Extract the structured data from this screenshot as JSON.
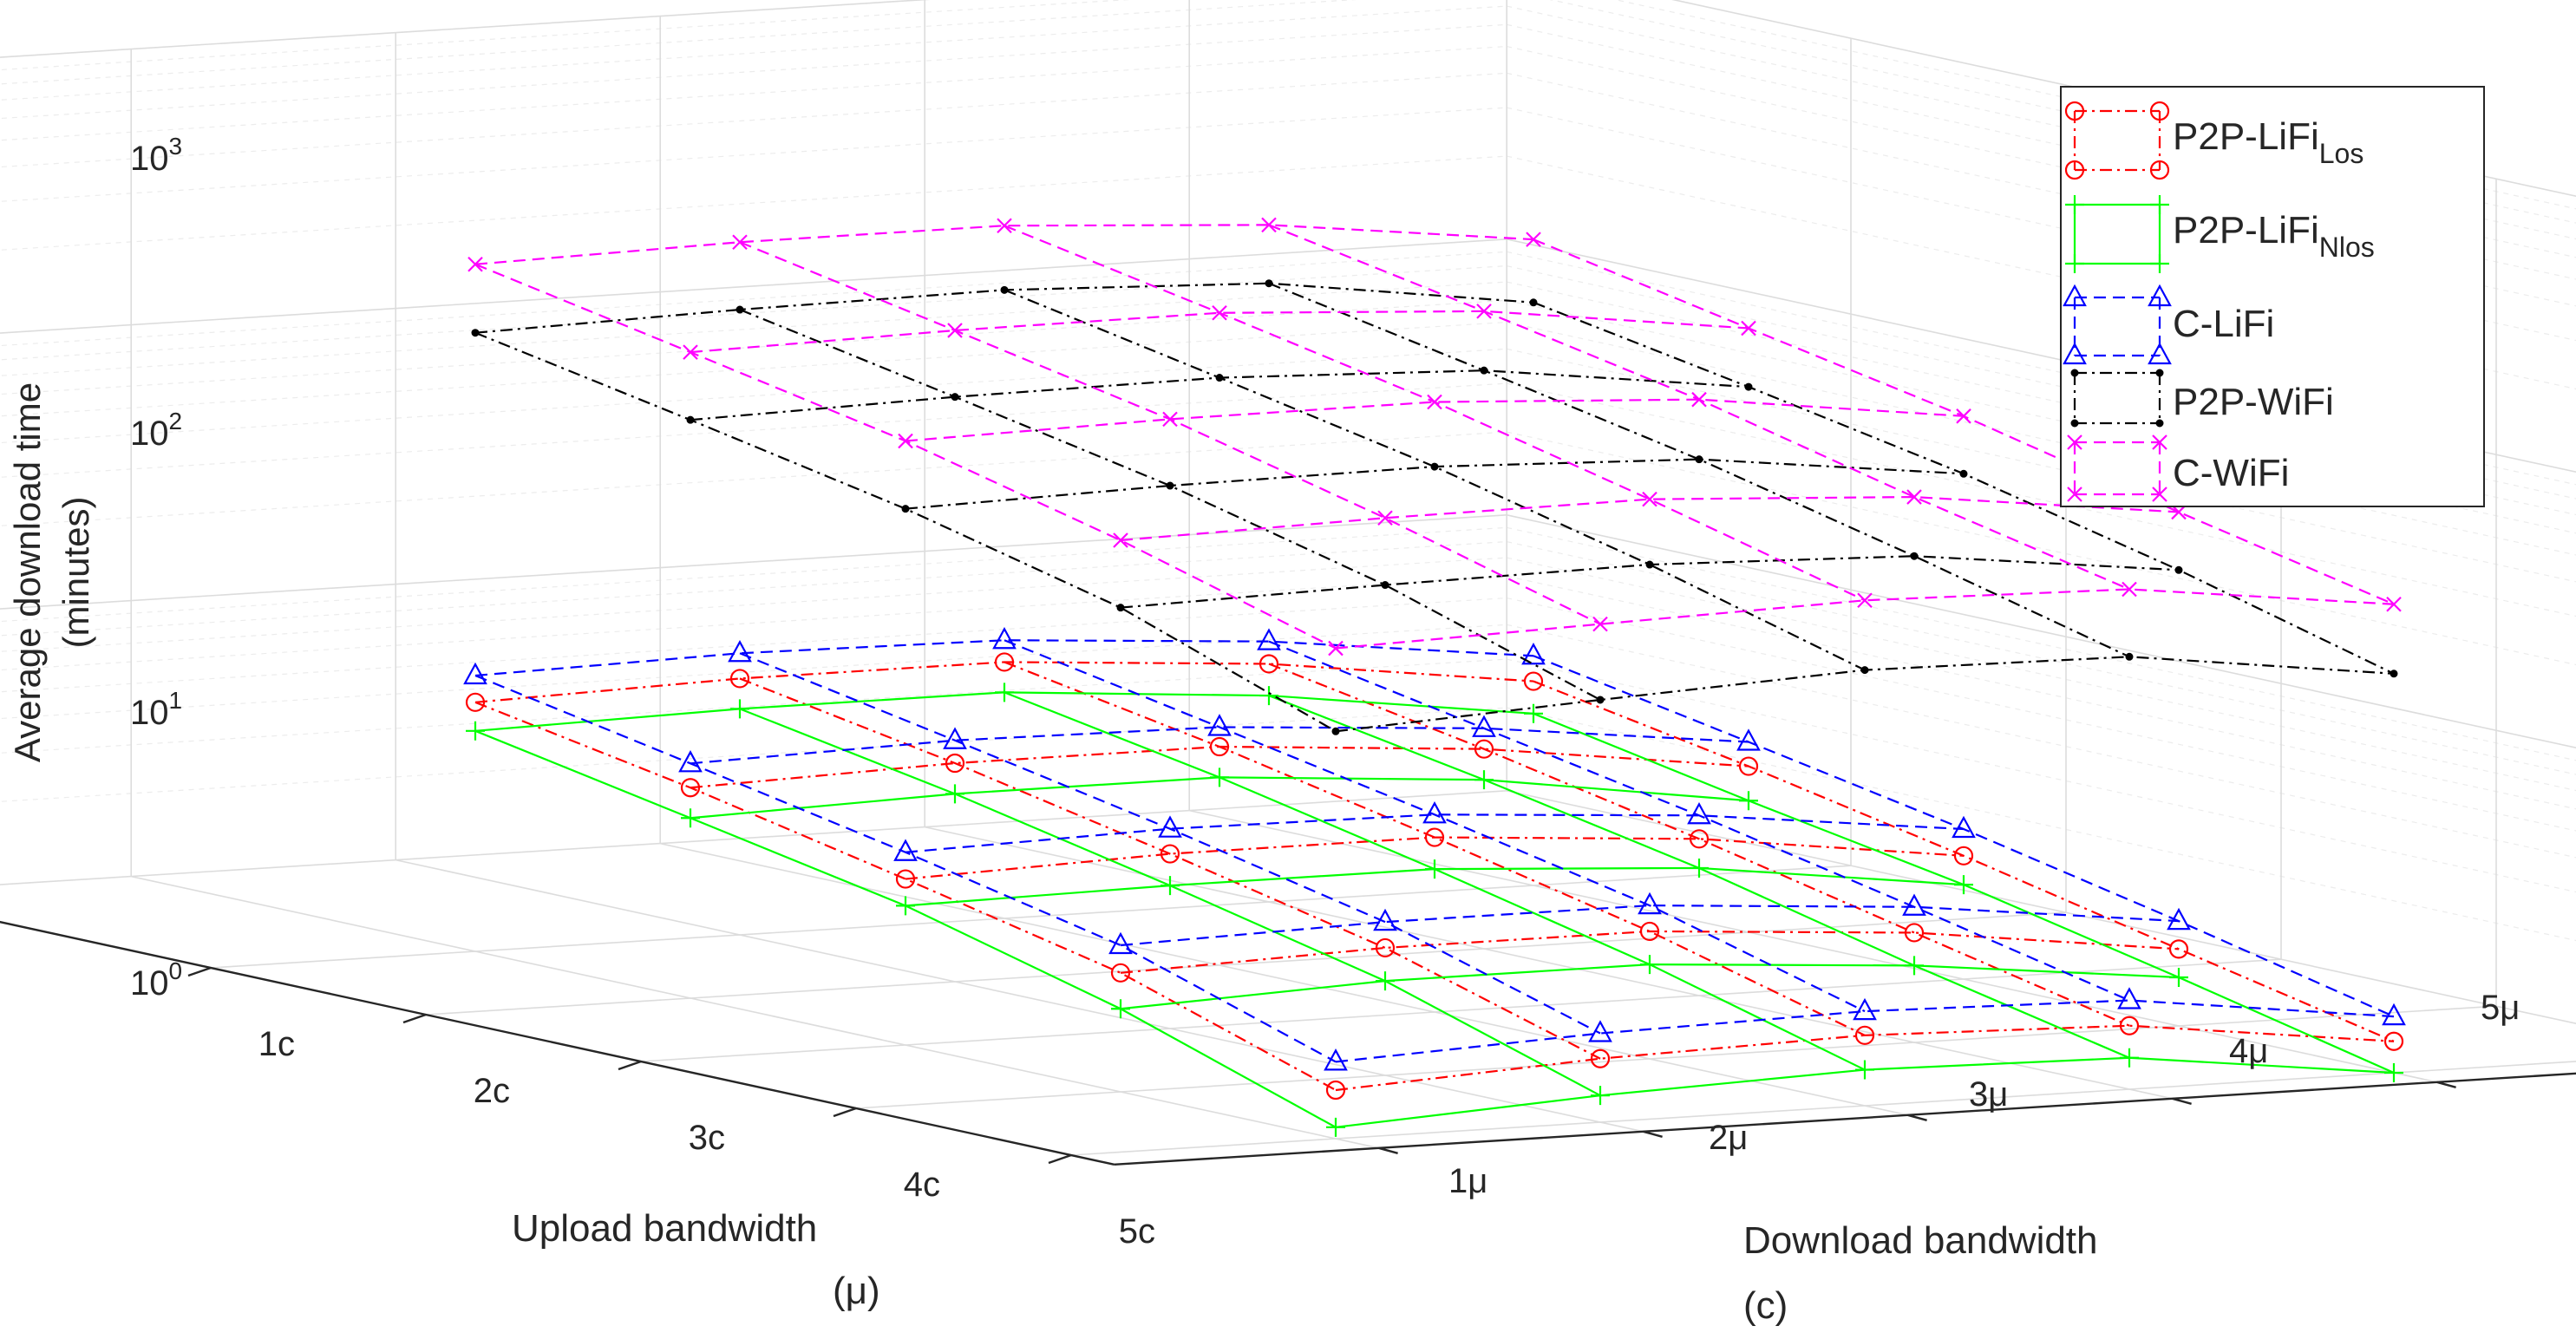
{
  "chart_data": {
    "type": "3d-line-mesh",
    "zscale": "log",
    "zlim": [
      1,
      1000
    ],
    "ztick_labels": [
      "10",
      "10",
      "10",
      "10"
    ],
    "ztick_exps": [
      "0",
      "1",
      "2",
      "3"
    ],
    "zlabel_line1": "Average download time",
    "zlabel_line2": "(minutes)",
    "upload_label": "Upload bandwidth",
    "upload_unit": "(μ)",
    "download_label": "Download bandwidth",
    "panel_label": "(c)",
    "upload_ticks": [
      "1c",
      "2c",
      "3c",
      "4c",
      "5c"
    ],
    "download_ticks": [
      "1μ",
      "2μ",
      "3μ",
      "4μ",
      "5μ"
    ],
    "series": [
      {
        "name": "P2P-LiFi",
        "sub": "Los",
        "color": "#ff0000",
        "marker": "circle",
        "dash": "14 6 3 6",
        "values": [
          [
            8.0,
            8.5,
            8.5,
            7.3,
            5.5
          ],
          [
            5.8,
            6.2,
            6.2,
            5.3,
            4.0
          ],
          [
            4.0,
            4.3,
            4.3,
            3.7,
            2.8
          ],
          [
            2.7,
            2.9,
            2.9,
            2.5,
            1.9
          ],
          [
            1.5,
            1.7,
            1.8,
            1.7,
            1.3
          ]
        ]
      },
      {
        "name": "P2P-LiFi",
        "sub": "Nlos",
        "color": "#00ff00",
        "marker": "plus",
        "dash": "",
        "values": [
          [
            6.3,
            6.6,
            6.6,
            5.6,
            4.2
          ],
          [
            4.5,
            4.8,
            4.8,
            4.1,
            3.0
          ],
          [
            3.2,
            3.3,
            3.3,
            2.9,
            2.2
          ],
          [
            2.0,
            2.2,
            2.2,
            1.9,
            1.5
          ],
          [
            1.1,
            1.25,
            1.35,
            1.3,
            1.0
          ]
        ]
      },
      {
        "name": "C-LiFi",
        "sub": "",
        "color": "#0000ff",
        "marker": "triangle",
        "dash": "14 8",
        "values": [
          [
            10.0,
            10.5,
            10.2,
            8.8,
            6.8
          ],
          [
            7.1,
            7.5,
            7.3,
            6.3,
            4.9
          ],
          [
            5.0,
            5.3,
            5.2,
            4.5,
            3.5
          ],
          [
            3.4,
            3.6,
            3.6,
            3.1,
            2.4
          ],
          [
            1.9,
            2.1,
            2.2,
            2.1,
            1.6
          ]
        ]
      },
      {
        "name": "P2P-WiFi",
        "sub": "",
        "color": "#000000",
        "marker": "dot",
        "dash": "14 6 3 6",
        "values": [
          [
            175,
            185,
            190,
            175,
            130
          ],
          [
            125,
            132,
            135,
            125,
            95
          ],
          [
            88,
            93,
            95,
            88,
            68
          ],
          [
            57,
            60,
            62,
            58,
            45
          ],
          [
            30,
            34,
            38,
            37,
            28
          ]
        ]
      },
      {
        "name": "C-WiFi",
        "sub": "",
        "color": "#ff00ff",
        "marker": "x",
        "dash": "14 8",
        "values": [
          [
            310,
            325,
            325,
            285,
            220
          ],
          [
            220,
            230,
            232,
            205,
            155
          ],
          [
            155,
            162,
            163,
            145,
            110
          ],
          [
            100,
            105,
            107,
            95,
            73
          ],
          [
            60,
            64,
            68,
            65,
            50
          ]
        ]
      }
    ],
    "legend_position": "top-right"
  }
}
